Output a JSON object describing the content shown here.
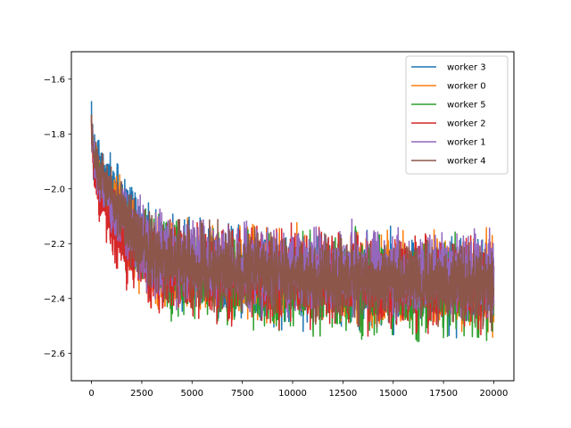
{
  "chart_data": {
    "type": "line",
    "title": "",
    "xlabel": "",
    "ylabel": "",
    "xlim": [
      -1000,
      21000
    ],
    "ylim": [
      -2.7,
      -1.5
    ],
    "xticks": [
      0,
      2500,
      5000,
      7500,
      10000,
      12500,
      15000,
      17500,
      20000
    ],
    "xtick_labels": [
      "0",
      "2500",
      "5000",
      "7500",
      "10000",
      "12500",
      "15000",
      "17500",
      "20000"
    ],
    "yticks": [
      -1.6,
      -1.8,
      -2.0,
      -2.2,
      -2.4,
      -2.6
    ],
    "ytick_labels": [
      "−1.6",
      "−1.8",
      "−2.0",
      "−2.2",
      "−2.4",
      "−2.6"
    ],
    "grid": false,
    "legend_position": "upper right",
    "series": [
      {
        "name": "worker 3",
        "color": "#1f77b4",
        "x": [
          0,
          100,
          300,
          600,
          1000,
          1500,
          2000,
          2500,
          3000,
          4000,
          5000,
          6000,
          7000,
          8000,
          9000,
          10000,
          11000,
          12000,
          13000,
          14000,
          15000,
          16000,
          17000,
          18000,
          19000,
          20000
        ],
        "y": [
          -1.75,
          -1.85,
          -1.92,
          -1.96,
          -2.0,
          -2.05,
          -2.1,
          -2.17,
          -2.22,
          -2.26,
          -2.28,
          -2.29,
          -2.3,
          -2.31,
          -2.31,
          -2.32,
          -2.32,
          -2.32,
          -2.33,
          -2.33,
          -2.33,
          -2.33,
          -2.34,
          -2.34,
          -2.34,
          -2.34
        ],
        "amp": [
          0.05,
          0.07,
          0.07,
          0.07,
          0.08,
          0.1,
          0.1,
          0.11,
          0.12,
          0.13,
          0.13,
          0.13,
          0.13,
          0.13,
          0.13,
          0.13,
          0.13,
          0.13,
          0.13,
          0.13,
          0.13,
          0.13,
          0.13,
          0.13,
          0.13,
          0.13
        ]
      },
      {
        "name": "worker 0",
        "color": "#ff7f0e",
        "x": [
          0,
          100,
          300,
          600,
          1000,
          1500,
          2000,
          2500,
          3000,
          4000,
          5000,
          6000,
          7000,
          8000,
          9000,
          10000,
          11000,
          12000,
          13000,
          14000,
          15000,
          16000,
          17000,
          18000,
          19000,
          20000
        ],
        "y": [
          -1.8,
          -1.88,
          -1.94,
          -1.99,
          -2.04,
          -2.11,
          -2.17,
          -2.22,
          -2.25,
          -2.28,
          -2.29,
          -2.3,
          -2.31,
          -2.31,
          -2.32,
          -2.32,
          -2.33,
          -2.33,
          -2.33,
          -2.33,
          -2.34,
          -2.34,
          -2.34,
          -2.34,
          -2.35,
          -2.35
        ],
        "amp": [
          0.05,
          0.06,
          0.07,
          0.07,
          0.08,
          0.1,
          0.11,
          0.12,
          0.13,
          0.13,
          0.13,
          0.13,
          0.13,
          0.13,
          0.13,
          0.13,
          0.13,
          0.13,
          0.13,
          0.13,
          0.13,
          0.13,
          0.13,
          0.13,
          0.13,
          0.13
        ]
      },
      {
        "name": "worker 5",
        "color": "#2ca02c",
        "x": [
          0,
          100,
          300,
          600,
          1000,
          1500,
          2000,
          2500,
          3000,
          4000,
          5000,
          6000,
          7000,
          8000,
          9000,
          10000,
          11000,
          12000,
          13000,
          14000,
          15000,
          16000,
          17000,
          18000,
          19000,
          20000
        ],
        "y": [
          -1.8,
          -1.88,
          -1.95,
          -2.0,
          -2.06,
          -2.13,
          -2.19,
          -2.23,
          -2.26,
          -2.29,
          -2.3,
          -2.31,
          -2.32,
          -2.33,
          -2.33,
          -2.34,
          -2.35,
          -2.35,
          -2.35,
          -2.36,
          -2.36,
          -2.36,
          -2.36,
          -2.37,
          -2.37,
          -2.37
        ],
        "amp": [
          0.05,
          0.06,
          0.07,
          0.07,
          0.08,
          0.1,
          0.11,
          0.12,
          0.13,
          0.13,
          0.13,
          0.13,
          0.13,
          0.13,
          0.14,
          0.14,
          0.14,
          0.14,
          0.14,
          0.14,
          0.14,
          0.14,
          0.14,
          0.14,
          0.14,
          0.14
        ]
      },
      {
        "name": "worker 2",
        "color": "#d62728",
        "x": [
          0,
          100,
          300,
          600,
          1000,
          1500,
          2000,
          2500,
          3000,
          4000,
          5000,
          6000,
          7000,
          8000,
          9000,
          10000,
          11000,
          12000,
          13000,
          14000,
          15000,
          16000,
          17000,
          18000,
          19000,
          20000
        ],
        "y": [
          -1.82,
          -1.9,
          -1.98,
          -2.06,
          -2.14,
          -2.2,
          -2.23,
          -2.25,
          -2.27,
          -2.29,
          -2.3,
          -2.31,
          -2.31,
          -2.32,
          -2.32,
          -2.32,
          -2.33,
          -2.33,
          -2.33,
          -2.34,
          -2.34,
          -2.34,
          -2.34,
          -2.34,
          -2.35,
          -2.35
        ],
        "amp": [
          0.05,
          0.06,
          0.08,
          0.09,
          0.1,
          0.11,
          0.12,
          0.12,
          0.13,
          0.13,
          0.13,
          0.13,
          0.13,
          0.13,
          0.13,
          0.13,
          0.13,
          0.13,
          0.13,
          0.13,
          0.13,
          0.13,
          0.13,
          0.13,
          0.13,
          0.13
        ]
      },
      {
        "name": "worker 1",
        "color": "#9467bd",
        "x": [
          0,
          100,
          300,
          600,
          1000,
          1500,
          2000,
          2500,
          3000,
          4000,
          5000,
          6000,
          7000,
          8000,
          9000,
          10000,
          11000,
          12000,
          13000,
          14000,
          15000,
          16000,
          17000,
          18000,
          19000,
          20000
        ],
        "y": [
          -1.8,
          -1.88,
          -1.95,
          -2.0,
          -2.06,
          -2.12,
          -2.17,
          -2.2,
          -2.23,
          -2.26,
          -2.27,
          -2.28,
          -2.28,
          -2.29,
          -2.29,
          -2.3,
          -2.3,
          -2.3,
          -2.3,
          -2.31,
          -2.31,
          -2.31,
          -2.31,
          -2.31,
          -2.31,
          -2.31
        ],
        "amp": [
          0.05,
          0.06,
          0.07,
          0.07,
          0.08,
          0.1,
          0.11,
          0.12,
          0.12,
          0.12,
          0.12,
          0.12,
          0.12,
          0.12,
          0.12,
          0.12,
          0.12,
          0.12,
          0.12,
          0.12,
          0.12,
          0.12,
          0.12,
          0.12,
          0.12,
          0.12
        ]
      },
      {
        "name": "worker 4",
        "color": "#8c564b",
        "x": [
          0,
          100,
          300,
          600,
          1000,
          1500,
          2000,
          2500,
          3000,
          4000,
          5000,
          6000,
          7000,
          8000,
          9000,
          10000,
          11000,
          12000,
          13000,
          14000,
          15000,
          16000,
          17000,
          18000,
          19000,
          20000
        ],
        "y": [
          -1.8,
          -1.87,
          -1.93,
          -1.97,
          -2.02,
          -2.09,
          -2.15,
          -2.2,
          -2.24,
          -2.27,
          -2.29,
          -2.3,
          -2.31,
          -2.31,
          -2.32,
          -2.32,
          -2.33,
          -2.33,
          -2.33,
          -2.34,
          -2.34,
          -2.34,
          -2.34,
          -2.35,
          -2.35,
          -2.35
        ],
        "amp": [
          0.05,
          0.06,
          0.07,
          0.07,
          0.08,
          0.1,
          0.11,
          0.12,
          0.12,
          0.12,
          0.12,
          0.12,
          0.12,
          0.12,
          0.12,
          0.12,
          0.12,
          0.12,
          0.12,
          0.12,
          0.12,
          0.12,
          0.12,
          0.12,
          0.12,
          0.12
        ]
      }
    ]
  }
}
